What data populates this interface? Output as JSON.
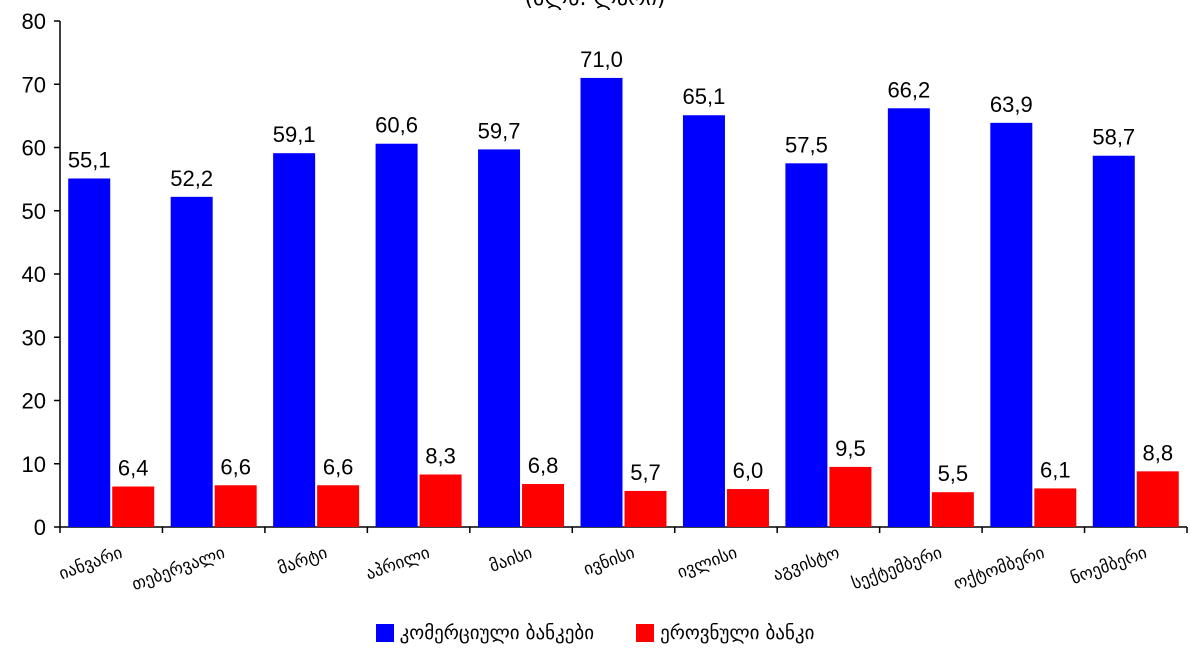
{
  "subtitle": "(მლნ. ლარი)",
  "chart_data": {
    "type": "bar",
    "categories": [
      "იანვარი",
      "თებერვალი",
      "მარტი",
      "აპრილი",
      "მაისი",
      "ივნისი",
      "ივლისი",
      "აგვისტო",
      "სექტემბერი",
      "ოქტომბერი",
      "ნოემბერი"
    ],
    "series": [
      {
        "name": "კომერციული ბანკები",
        "color": "#0000ff",
        "values": [
          55.1,
          52.2,
          59.1,
          60.6,
          59.7,
          71.0,
          65.1,
          57.5,
          66.2,
          63.9,
          58.7
        ],
        "labels": [
          "55,1",
          "52,2",
          "59,1",
          "60,6",
          "59,7",
          "71,0",
          "65,1",
          "57,5",
          "66,2",
          "63,9",
          "58,7"
        ]
      },
      {
        "name": "ეროვნული ბანკი",
        "color": "#ff0000",
        "values": [
          6.4,
          6.6,
          6.6,
          8.3,
          6.8,
          5.7,
          6.0,
          9.5,
          5.5,
          6.1,
          8.8
        ],
        "labels": [
          "6,4",
          "6,6",
          "6,6",
          "8,3",
          "6,8",
          "5,7",
          "6,0",
          "9,5",
          "5,5",
          "6,1",
          "8,8"
        ]
      }
    ],
    "ylim": [
      0,
      80
    ],
    "yticks": [
      0,
      10,
      20,
      30,
      40,
      50,
      60,
      70,
      80
    ],
    "grid": false,
    "legend": "bottom"
  }
}
